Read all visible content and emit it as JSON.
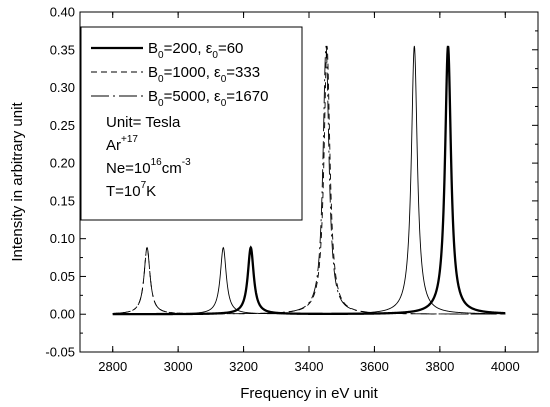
{
  "chart_data": {
    "type": "line",
    "xlabel": "Frequency in eV unit",
    "ylabel": "Intensity in arbitrary unit",
    "xlim": [
      2700,
      4100
    ],
    "ylim": [
      -0.05,
      0.4
    ],
    "x_ticks": [
      "2800",
      "3000",
      "3200",
      "3400",
      "3600",
      "3800",
      "4000"
    ],
    "y_ticks": [
      "-0.05",
      "0.00",
      "0.05",
      "0.10",
      "0.15",
      "0.20",
      "0.25",
      "0.30",
      "0.35",
      "0.40"
    ],
    "grid": false,
    "legend_position": "top-left",
    "series": [
      {
        "name": "B0=200, ε0=60",
        "style": "solid-thick",
        "peaks": [
          {
            "x": 3222,
            "y": 0.088
          },
          {
            "x": 3825,
            "y": 0.355
          }
        ],
        "x_range": [
          2800,
          4000
        ]
      },
      {
        "name": "B0=1000, ε0=333",
        "style": "dashed",
        "peaks": [
          {
            "x": 2905,
            "y": 0.088
          },
          {
            "x": 3455,
            "y": 0.355
          }
        ],
        "x_range": [
          2800,
          4000
        ]
      },
      {
        "name": "B0=5000, ε0=1670",
        "style": "dash-dot",
        "peaks": [
          {
            "x": 2905,
            "y": 0.088
          },
          {
            "x": 3452,
            "y": 0.355
          }
        ],
        "x_range": [
          2800,
          4000
        ]
      },
      {
        "name": "",
        "style": "solid-thin",
        "peaks": [
          {
            "x": 3138,
            "y": 0.088
          },
          {
            "x": 3722,
            "y": 0.355
          }
        ],
        "x_range": [
          2800,
          4000
        ]
      }
    ],
    "legend": {
      "entries": [
        {
          "main": "B",
          "sub": "0",
          "rest": "=200, ε",
          "sub2": "0",
          "rest2": "=60",
          "style": "solid-thick"
        },
        {
          "main": "B",
          "sub": "0",
          "rest": "=1000, ε",
          "sub2": "0",
          "rest2": "=333",
          "style": "dashed"
        },
        {
          "main": "B",
          "sub": "0",
          "rest": "=5000, ε",
          "sub2": "0",
          "rest2": "=1670",
          "style": "dash-dot"
        }
      ],
      "notes": {
        "unit": "Unit= Tesla",
        "ion_base": "Ar",
        "ion_sup": "+17",
        "ne_base": "Ne=10",
        "ne_sup": "16",
        "ne_unit": "cm",
        "ne_unit_sup": "-3",
        "t_base": "T=10",
        "t_sup": "7",
        "t_unit": "K"
      }
    }
  }
}
